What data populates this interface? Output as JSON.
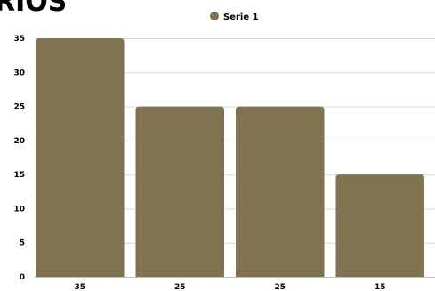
{
  "chart_data": {
    "type": "bar",
    "title": "RIOS",
    "categories": [
      "35",
      "25",
      "25",
      "15"
    ],
    "series": [
      {
        "name": "Serie 1",
        "values": [
          35,
          25,
          25,
          15
        ],
        "color": "#7f7350"
      }
    ],
    "ylim": [
      0,
      35
    ],
    "yticks": [
      0,
      5,
      10,
      15,
      20,
      25,
      30,
      35
    ],
    "grid": true,
    "legend": "top-center"
  }
}
